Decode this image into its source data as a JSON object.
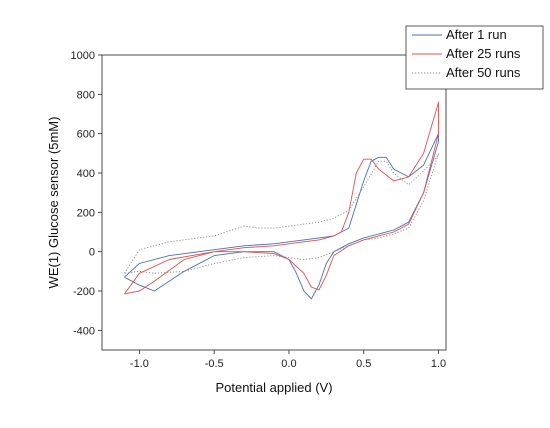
{
  "chart_data": {
    "type": "line",
    "title": "",
    "xlabel": "Potential applied (V)",
    "ylabel": "WE(1) Glucose sensor (5mM)",
    "xlim": [
      -1.25,
      1.05
    ],
    "ylim": [
      -500,
      1000
    ],
    "xticks": [
      -1.0,
      -0.5,
      0.0,
      0.5,
      1.0
    ],
    "xtick_labels": [
      "-1.0",
      "-0.5",
      "0.0",
      "0.5",
      "1.0"
    ],
    "yticks": [
      -400,
      -200,
      0,
      200,
      400,
      600,
      800,
      1000
    ],
    "ytick_labels": [
      "-400",
      "-200",
      "0",
      "200",
      "400",
      "600",
      "800",
      "1000"
    ],
    "grid": false,
    "legend_position": "top-right",
    "series": [
      {
        "name": "After 1 run",
        "color": "#4a6fb0",
        "dash": "solid",
        "x": [
          -1.1,
          -1.0,
          -0.8,
          -0.5,
          -0.3,
          -0.1,
          0.0,
          0.1,
          0.2,
          0.3,
          0.4,
          0.5,
          0.55,
          0.6,
          0.65,
          0.7,
          0.8,
          0.9,
          1.0,
          1.0,
          0.9,
          0.8,
          0.7,
          0.6,
          0.5,
          0.4,
          0.3,
          0.25,
          0.2,
          0.15,
          0.1,
          0.05,
          0.0,
          -0.1,
          -0.3,
          -0.5,
          -0.7,
          -0.9,
          -1.0,
          -1.1
        ],
        "y": [
          -130,
          -60,
          -20,
          10,
          30,
          40,
          50,
          60,
          70,
          80,
          120,
          360,
          460,
          480,
          480,
          420,
          380,
          440,
          600,
          560,
          300,
          150,
          110,
          90,
          70,
          40,
          0,
          -60,
          -170,
          -240,
          -200,
          -110,
          -40,
          0,
          0,
          -20,
          -100,
          -200,
          -170,
          -130
        ]
      },
      {
        "name": "After 25 runs",
        "color": "#e0504e",
        "dash": "solid",
        "x": [
          -1.1,
          -1.0,
          -0.8,
          -0.5,
          -0.3,
          -0.1,
          0.0,
          0.1,
          0.2,
          0.3,
          0.35,
          0.4,
          0.45,
          0.5,
          0.55,
          0.6,
          0.7,
          0.8,
          0.9,
          1.0,
          1.0,
          0.9,
          0.8,
          0.7,
          0.6,
          0.5,
          0.4,
          0.3,
          0.25,
          0.2,
          0.15,
          0.1,
          0.0,
          -0.1,
          -0.3,
          -0.5,
          -0.7,
          -0.9,
          -1.0,
          -1.1
        ],
        "y": [
          -215,
          -110,
          -40,
          0,
          20,
          30,
          40,
          50,
          60,
          80,
          100,
          200,
          400,
          470,
          470,
          420,
          360,
          380,
          500,
          760,
          600,
          300,
          140,
          100,
          80,
          60,
          30,
          -20,
          -120,
          -195,
          -180,
          -110,
          -40,
          -10,
          0,
          0,
          -40,
          -150,
          -200,
          -215
        ]
      },
      {
        "name": "After 50 runs",
        "color": "#888888",
        "dash": "dotted",
        "x": [
          -1.1,
          -1.0,
          -0.8,
          -0.5,
          -0.3,
          -0.2,
          -0.1,
          0.0,
          0.1,
          0.2,
          0.3,
          0.4,
          0.5,
          0.6,
          0.65,
          0.7,
          0.8,
          0.9,
          1.0,
          1.0,
          0.9,
          0.8,
          0.7,
          0.6,
          0.5,
          0.4,
          0.3,
          0.2,
          0.1,
          0.0,
          -0.1,
          -0.3,
          -0.5,
          -0.7,
          -0.9,
          -1.0,
          -1.1
        ],
        "y": [
          -110,
          10,
          50,
          80,
          130,
          120,
          120,
          130,
          140,
          150,
          170,
          210,
          330,
          460,
          460,
          400,
          340,
          410,
          490,
          500,
          260,
          120,
          90,
          70,
          60,
          30,
          0,
          -30,
          -40,
          -30,
          -20,
          -30,
          -60,
          -100,
          -110,
          -100,
          -110
        ]
      }
    ]
  }
}
